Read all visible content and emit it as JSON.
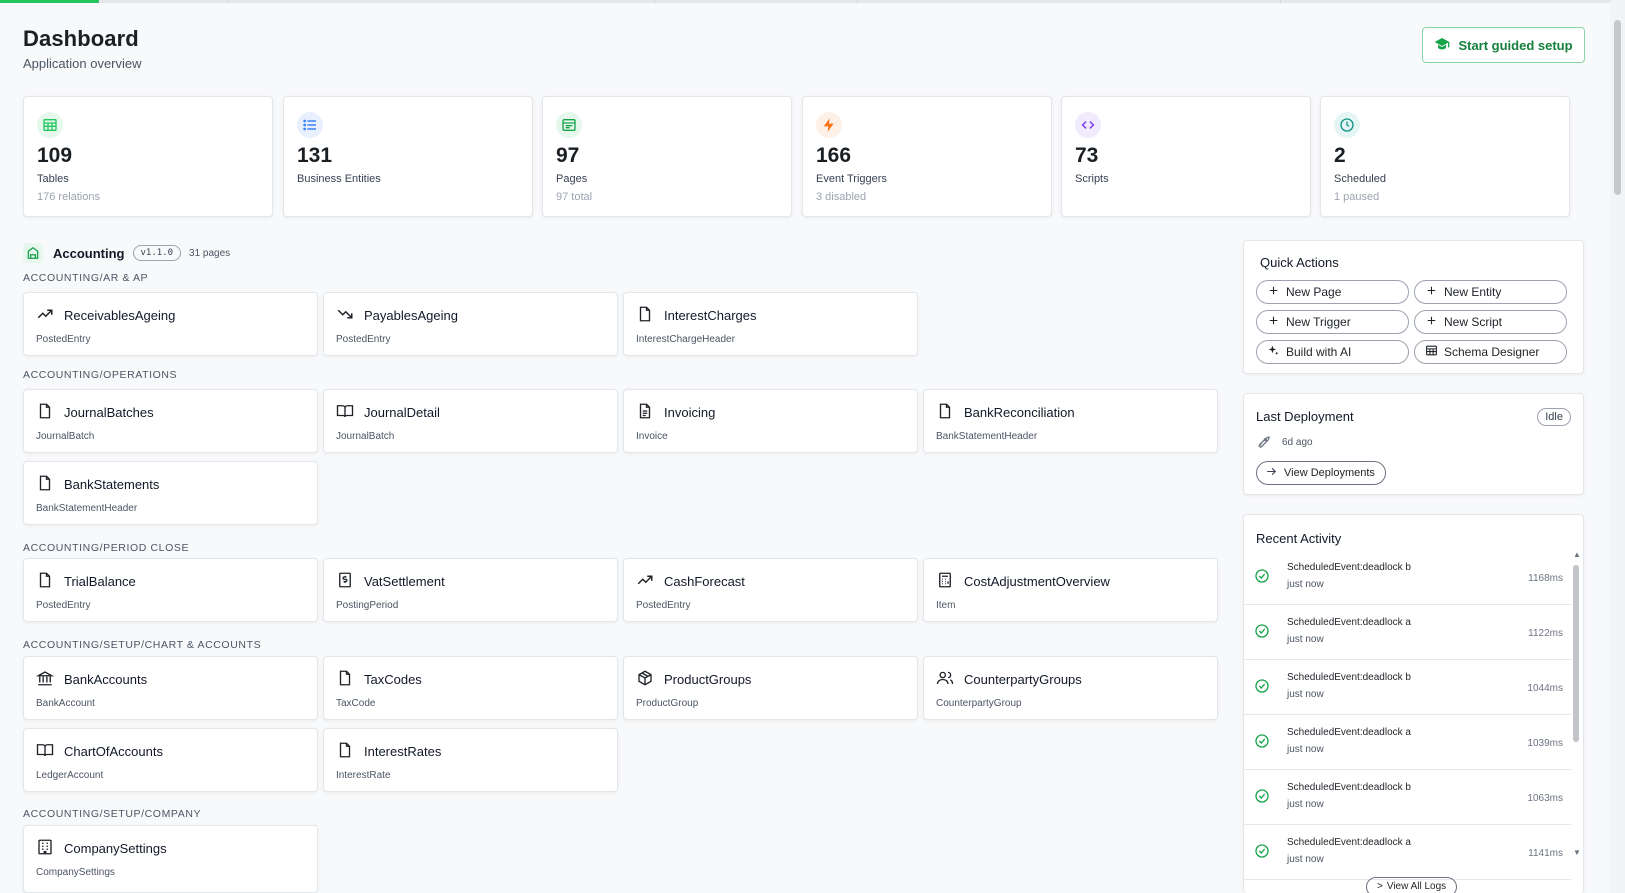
{
  "header": {
    "title": "Dashboard",
    "subtitle": "Application overview",
    "guided_setup": "Start guided setup"
  },
  "stats": [
    {
      "value": "109",
      "label": "Tables",
      "sub": "176 relations",
      "icon": "table-icon",
      "color": "#22c55e",
      "bg": "#e6f7ec"
    },
    {
      "value": "131",
      "label": "Business Entities",
      "sub": "",
      "icon": "list-icon",
      "color": "#3b82f6",
      "bg": "#e8f0fe"
    },
    {
      "value": "97",
      "label": "Pages",
      "sub": "97 total",
      "icon": "browser-icon",
      "color": "#16a34a",
      "bg": "#e6f7ec"
    },
    {
      "value": "166",
      "label": "Event Triggers",
      "sub": "3 disabled",
      "icon": "bolt-icon",
      "color": "#f97316",
      "bg": "#fdf0e6"
    },
    {
      "value": "73",
      "label": "Scripts",
      "sub": "",
      "icon": "code-icon",
      "color": "#7c3aed",
      "bg": "#f0eafd"
    },
    {
      "value": "2",
      "label": "Scheduled",
      "sub": "1 paused",
      "icon": "clock-icon",
      "color": "#0d9488",
      "bg": "#e4f5f3"
    }
  ],
  "module": {
    "name": "Accounting",
    "version": "v1.1.0",
    "pages": "31 pages"
  },
  "sections": [
    {
      "title": "ACCOUNTING/AR & AP",
      "cards": [
        {
          "title": "ReceivablesAgeing",
          "entity": "PostedEntry",
          "icon": "trend-up-icon"
        },
        {
          "title": "PayablesAgeing",
          "entity": "PostedEntry",
          "icon": "trend-down-icon"
        },
        {
          "title": "InterestCharges",
          "entity": "InterestChargeHeader",
          "icon": "file-icon"
        }
      ]
    },
    {
      "title": "ACCOUNTING/OPERATIONS",
      "cards": [
        {
          "title": "JournalBatches",
          "entity": "JournalBatch",
          "icon": "file-icon"
        },
        {
          "title": "JournalDetail",
          "entity": "JournalBatch",
          "icon": "book-open-icon"
        },
        {
          "title": "Invoicing",
          "entity": "Invoice",
          "icon": "file-text-icon"
        },
        {
          "title": "BankReconciliation",
          "entity": "BankStatementHeader",
          "icon": "file-icon"
        },
        {
          "title": "BankStatements",
          "entity": "BankStatementHeader",
          "icon": "file-icon"
        }
      ]
    },
    {
      "title": "ACCOUNTING/PERIOD CLOSE",
      "cards": [
        {
          "title": "TrialBalance",
          "entity": "PostedEntry",
          "icon": "file-icon"
        },
        {
          "title": "VatSettlement",
          "entity": "PostingPeriod",
          "icon": "receipt-dollar-icon"
        },
        {
          "title": "CashForecast",
          "entity": "PostedEntry",
          "icon": "trend-up-icon"
        },
        {
          "title": "CostAdjustmentOverview",
          "entity": "Item",
          "icon": "calculator-icon"
        }
      ]
    },
    {
      "title": "ACCOUNTING/SETUP/CHART & ACCOUNTS",
      "cards": [
        {
          "title": "BankAccounts",
          "entity": "BankAccount",
          "icon": "bank-icon"
        },
        {
          "title": "TaxCodes",
          "entity": "TaxCode",
          "icon": "file-icon"
        },
        {
          "title": "ProductGroups",
          "entity": "ProductGroup",
          "icon": "package-icon"
        },
        {
          "title": "CounterpartyGroups",
          "entity": "CounterpartyGroup",
          "icon": "users-icon"
        },
        {
          "title": "ChartOfAccounts",
          "entity": "LedgerAccount",
          "icon": "book-open-icon"
        },
        {
          "title": "InterestRates",
          "entity": "InterestRate",
          "icon": "file-icon"
        }
      ]
    },
    {
      "title": "ACCOUNTING/SETUP/COMPANY",
      "cards": [
        {
          "title": "CompanySettings",
          "entity": "CompanySettings",
          "icon": "building-icon"
        }
      ]
    }
  ],
  "quick_actions": {
    "title": "Quick Actions",
    "buttons": [
      {
        "label": "New Page",
        "icon": "plus-icon"
      },
      {
        "label": "New Entity",
        "icon": "plus-icon"
      },
      {
        "label": "New Trigger",
        "icon": "plus-icon"
      },
      {
        "label": "New Script",
        "icon": "plus-icon"
      },
      {
        "label": "Build with AI",
        "icon": "sparkles-icon"
      },
      {
        "label": "Schema Designer",
        "icon": "table-icon"
      }
    ]
  },
  "deployment": {
    "title": "Last Deployment",
    "status": "Idle",
    "time": "6d ago",
    "view_label": "View Deployments"
  },
  "activity": {
    "title": "Recent Activity",
    "items": [
      {
        "name": "ScheduledEvent:deadlock b",
        "time": "just now",
        "ms": "1168ms"
      },
      {
        "name": "ScheduledEvent:deadlock a",
        "time": "just now",
        "ms": "1122ms"
      },
      {
        "name": "ScheduledEvent:deadlock b",
        "time": "just now",
        "ms": "1044ms"
      },
      {
        "name": "ScheduledEvent:deadlock a",
        "time": "just now",
        "ms": "1039ms"
      },
      {
        "name": "ScheduledEvent:deadlock b",
        "time": "just now",
        "ms": "1063ms"
      },
      {
        "name": "ScheduledEvent:deadlock a",
        "time": "just now",
        "ms": "1141ms"
      }
    ],
    "view_all": "View All Logs"
  }
}
